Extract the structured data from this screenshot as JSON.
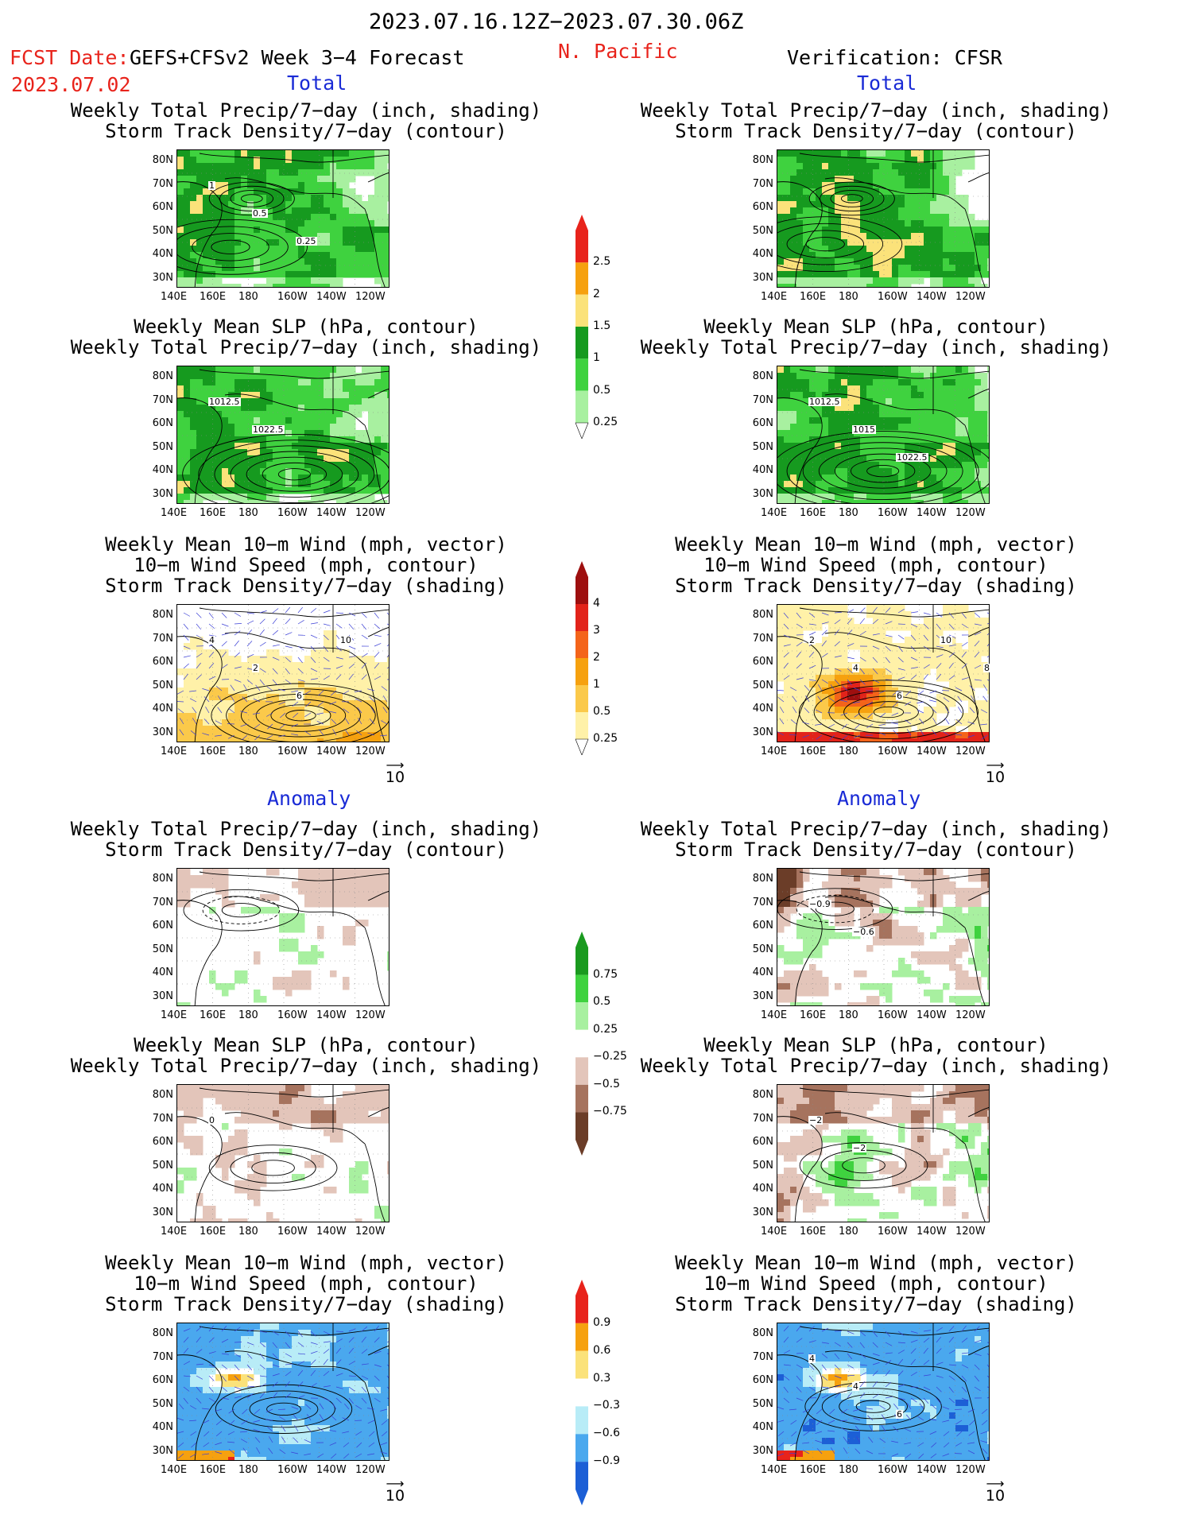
{
  "header": {
    "date_range": "2023.07.16.12Z−2023.07.30.06Z",
    "fcst_label": "FCST Date:",
    "model": "GEFS+CFSv2 Week 3−4 Forecast",
    "fcst_date": "2023.07.02",
    "region": "N. Pacific",
    "verification": "Verification: CFSR"
  },
  "sections": {
    "total": "Total",
    "anomaly": "Anomaly"
  },
  "panel_titles": {
    "precip_storm": [
      "Weekly Total Precip/7−day (inch, shading)",
      "Storm Track Density/7−day (contour)"
    ],
    "slp_precip": [
      "Weekly Mean SLP (hPa, contour)",
      "Weekly Total Precip/7−day (inch, shading)"
    ],
    "wind_storm": [
      "Weekly Mean 10−m Wind (mph, vector)",
      "10−m Wind Speed (mph, contour)",
      "Storm Track Density/7−day (shading)"
    ]
  },
  "axes": {
    "lat_labels": [
      "80N",
      "70N",
      "60N",
      "50N",
      "40N",
      "30N"
    ],
    "lon_labels": [
      "140E",
      "160E",
      "180",
      "160W",
      "140W",
      "120W"
    ]
  },
  "reference_vector": "10",
  "contour_labels": {
    "fcst_precip_storm": [
      "1",
      "0.5",
      "0.25"
    ],
    "fcst_slp": [
      "1012.5",
      "1022.5"
    ],
    "obs_slp": [
      "1012.5",
      "1015",
      "1022.5"
    ],
    "fcst_wind": [
      "4",
      "2",
      "6",
      "10"
    ],
    "obs_wind": [
      "2",
      "4",
      "6",
      "10",
      "8"
    ],
    "obs_anom_storm": [
      "−0.9",
      "−0.6"
    ],
    "obs_anom_slp": [
      "−2",
      "−2"
    ],
    "fcst_anom_slp": [
      "0"
    ],
    "obs_anom_wind": [
      "4",
      "4",
      "6"
    ]
  },
  "colorbars": {
    "precip_total": {
      "labels": [
        "2.5",
        "2",
        "1.5",
        "1",
        "0.5",
        "0.25"
      ],
      "colors": [
        "#e8231b",
        "#f6a10f",
        "#fbe27a",
        "#169a1f",
        "#3fd23f",
        "#a8f0a0"
      ]
    },
    "storm_total": {
      "labels": [
        "4",
        "3",
        "2",
        "1",
        "0.5",
        "0.25"
      ],
      "colors": [
        "#9e0f0f",
        "#e2231a",
        "#f4641a",
        "#f6a10f",
        "#fbc94a",
        "#fff1a8"
      ]
    },
    "precip_anom": {
      "labels": [
        "0.75",
        "0.5",
        "0.25",
        "−0.25",
        "−0.5",
        "−0.75"
      ],
      "colors": [
        "#1a9a1f",
        "#3fd23f",
        "#a8f0a0",
        "#e3c5ba",
        "#a6735e",
        "#6b3d28"
      ]
    },
    "storm_anom": {
      "labels": [
        "0.9",
        "0.6",
        "0.3",
        "−0.3",
        "−0.6",
        "−0.9"
      ],
      "colors": [
        "#e8231b",
        "#f6a10f",
        "#fbe27a",
        "#b8ecf7",
        "#4aa8ee",
        "#1c5fd6"
      ]
    }
  }
}
